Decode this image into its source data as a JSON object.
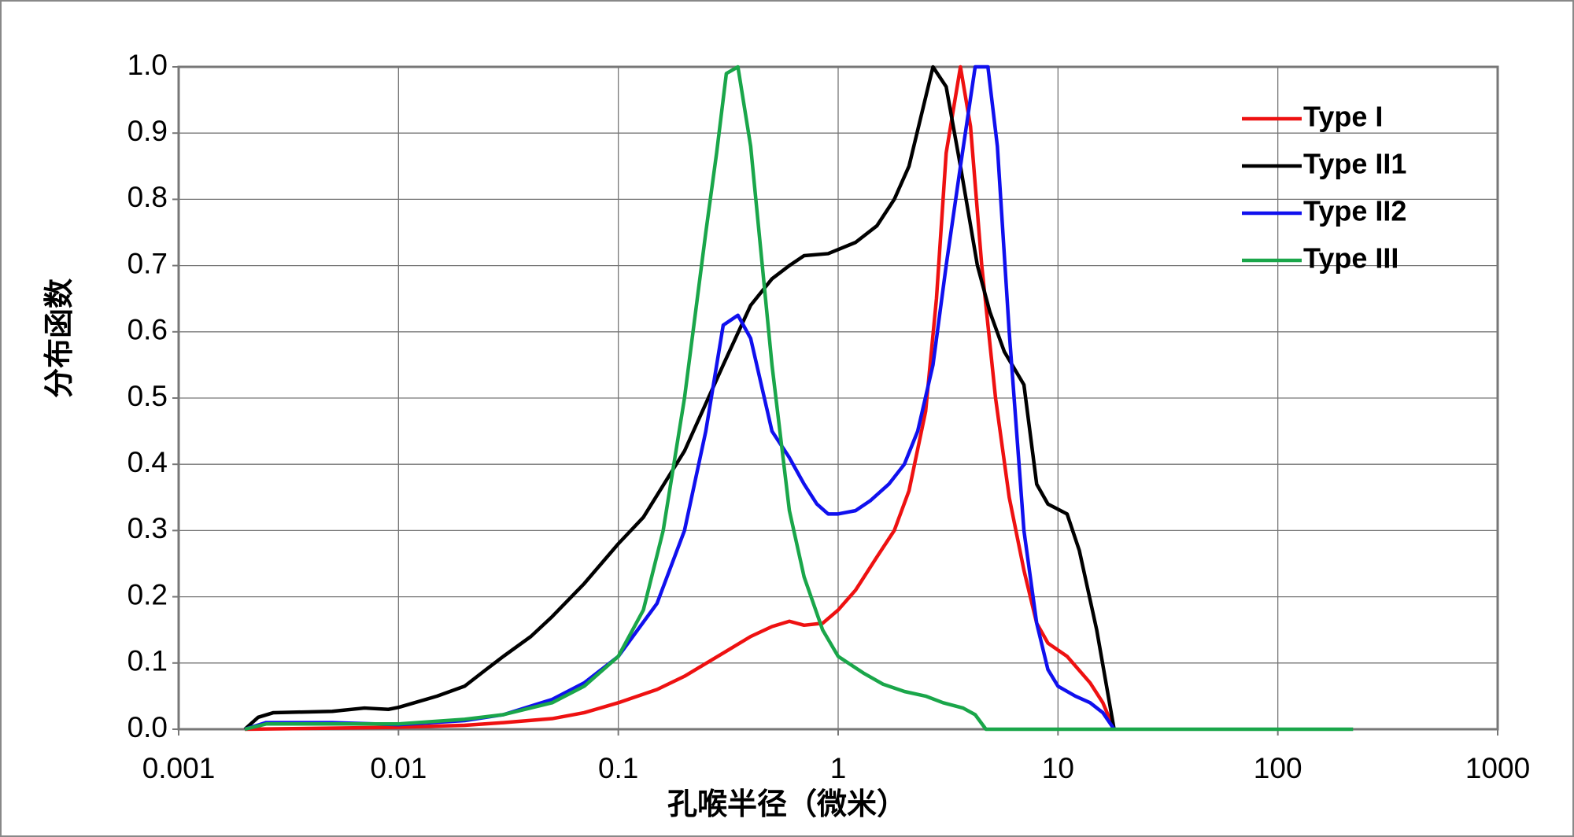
{
  "chart_data": {
    "type": "line",
    "x_label": "孔喉半径（微米）",
    "y_label": "分布函数",
    "xscale": "log",
    "xlim": [
      0.001,
      1000
    ],
    "xticks": [
      0.001,
      0.01,
      0.1,
      1,
      10,
      100,
      1000
    ],
    "ylim": [
      0,
      1
    ],
    "yticks": [
      {
        "value": 0,
        "label": "0.0"
      },
      0.1,
      0.2,
      0.3,
      0.4,
      0.5,
      0.6,
      0.7,
      0.8,
      0.9,
      {
        "value": 1,
        "label": "1.0"
      }
    ],
    "grid": true,
    "legend": "upper right",
    "series": [
      {
        "name": "Type I",
        "color": "#ee1111",
        "x": [
          0.002,
          0.01,
          0.02,
          0.03,
          0.05,
          0.07,
          0.1,
          0.15,
          0.2,
          0.3,
          0.4,
          0.5,
          0.6,
          0.7,
          0.85,
          1,
          1.2,
          1.5,
          1.8,
          2.1,
          2.5,
          2.8,
          3.1,
          3.6,
          4,
          4.5,
          5.2,
          6,
          7,
          8,
          9,
          11,
          14,
          16,
          18
        ],
        "values": [
          0,
          0.003,
          0.006,
          0.01,
          0.016,
          0.025,
          0.04,
          0.06,
          0.08,
          0.115,
          0.14,
          0.155,
          0.163,
          0.157,
          0.16,
          0.18,
          0.21,
          0.26,
          0.3,
          0.36,
          0.48,
          0.65,
          0.87,
          1.0,
          0.91,
          0.7,
          0.5,
          0.35,
          0.24,
          0.16,
          0.13,
          0.11,
          0.07,
          0.04,
          0
        ]
      },
      {
        "name": "Type II1",
        "color": "#000000",
        "x": [
          0.002,
          0.0023,
          0.0027,
          0.005,
          0.007,
          0.009,
          0.01,
          0.015,
          0.02,
          0.025,
          0.03,
          0.04,
          0.05,
          0.07,
          0.1,
          0.13,
          0.2,
          0.3,
          0.4,
          0.5,
          0.6,
          0.7,
          0.9,
          1.2,
          1.5,
          1.8,
          2.1,
          2.7,
          3.1,
          3.6,
          4.3,
          4.9,
          5.7,
          7,
          8,
          9,
          11,
          12.5,
          15,
          18
        ],
        "values": [
          0,
          0.018,
          0.025,
          0.027,
          0.032,
          0.03,
          0.033,
          0.05,
          0.065,
          0.09,
          0.11,
          0.14,
          0.17,
          0.22,
          0.28,
          0.32,
          0.42,
          0.55,
          0.64,
          0.68,
          0.7,
          0.715,
          0.718,
          0.735,
          0.76,
          0.8,
          0.85,
          1.0,
          0.97,
          0.85,
          0.7,
          0.63,
          0.57,
          0.52,
          0.37,
          0.34,
          0.325,
          0.27,
          0.15,
          0
        ]
      },
      {
        "name": "Type II2",
        "color": "#1010ee",
        "x": [
          0.002,
          0.0025,
          0.005,
          0.01,
          0.02,
          0.03,
          0.05,
          0.07,
          0.1,
          0.15,
          0.2,
          0.25,
          0.3,
          0.35,
          0.4,
          0.5,
          0.6,
          0.7,
          0.8,
          0.9,
          1,
          1.2,
          1.4,
          1.7,
          2,
          2.3,
          2.7,
          3.1,
          3.6,
          4.2,
          4.8,
          5.3,
          6,
          7,
          8,
          9,
          10,
          12,
          14,
          16,
          18
        ],
        "values": [
          0,
          0.01,
          0.01,
          0.007,
          0.013,
          0.022,
          0.045,
          0.07,
          0.11,
          0.19,
          0.3,
          0.45,
          0.61,
          0.625,
          0.59,
          0.45,
          0.41,
          0.37,
          0.34,
          0.325,
          0.325,
          0.33,
          0.345,
          0.37,
          0.4,
          0.45,
          0.55,
          0.7,
          0.85,
          1.0,
          1.0,
          0.88,
          0.6,
          0.3,
          0.16,
          0.09,
          0.065,
          0.05,
          0.04,
          0.025,
          0
        ]
      },
      {
        "name": "Type III",
        "color": "#1aa64a",
        "x": [
          0.002,
          0.0025,
          0.005,
          0.01,
          0.02,
          0.03,
          0.05,
          0.07,
          0.1,
          0.13,
          0.16,
          0.2,
          0.25,
          0.28,
          0.31,
          0.35,
          0.4,
          0.5,
          0.6,
          0.7,
          0.85,
          1,
          1.3,
          1.6,
          2,
          2.5,
          3,
          3.7,
          4.2,
          4.7,
          10,
          100,
          220
        ],
        "values": [
          0,
          0.008,
          0.008,
          0.008,
          0.015,
          0.022,
          0.04,
          0.065,
          0.11,
          0.18,
          0.3,
          0.5,
          0.75,
          0.87,
          0.99,
          1.0,
          0.88,
          0.55,
          0.33,
          0.23,
          0.15,
          0.11,
          0.085,
          0.068,
          0.057,
          0.05,
          0.04,
          0.032,
          0.022,
          0,
          0,
          0,
          0
        ]
      }
    ]
  }
}
